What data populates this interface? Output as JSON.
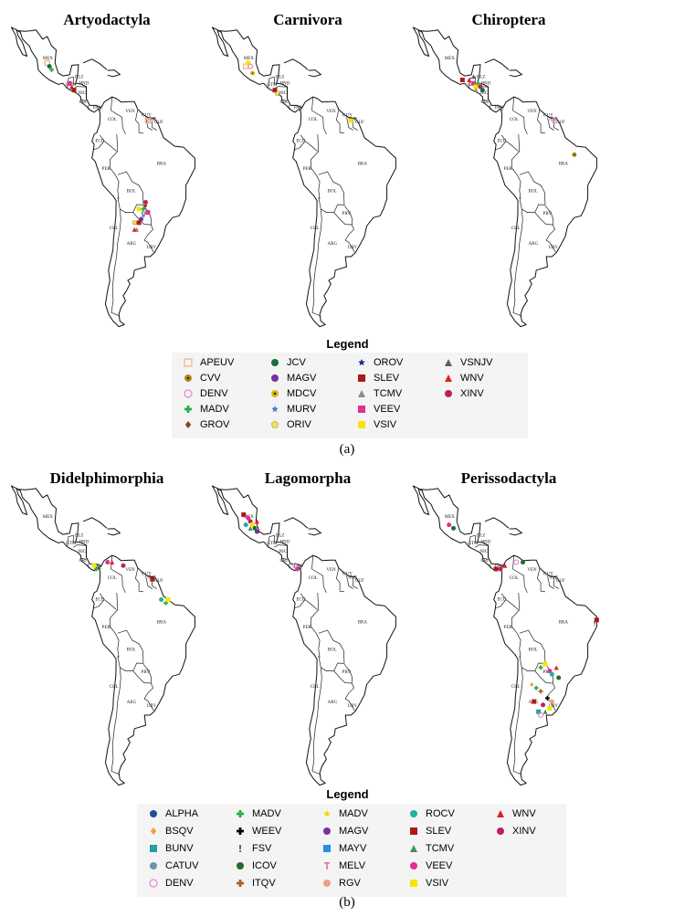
{
  "panel_a": {
    "label": "(a)",
    "maps": [
      {
        "title": "Artyodactyla",
        "markers": [
          [
            "APEUV",
            -101,
            22
          ],
          [
            "JCV",
            -100,
            21
          ],
          [
            "MADV",
            -99,
            20
          ],
          [
            "WNV",
            -90,
            15
          ],
          [
            "SLEV",
            -89,
            14
          ],
          [
            "VEEV",
            -91,
            16
          ],
          [
            "DENV",
            -55,
            5
          ],
          [
            "APEUV",
            -56,
            5
          ],
          [
            "GROV",
            -57,
            -20
          ],
          [
            "MADV",
            -58,
            -21
          ],
          [
            "VEEV",
            -56,
            -22
          ],
          [
            "MAGV",
            -59,
            -24
          ],
          [
            "SLEV",
            -60,
            -25
          ],
          [
            "ORIV",
            -62,
            -25
          ],
          [
            "MURV",
            -58,
            -23
          ],
          [
            "TCMV",
            -61,
            -27
          ],
          [
            "XINV",
            -57,
            -19
          ],
          [
            "VSIV",
            -60,
            -21
          ],
          [
            "WNV",
            -62,
            -27
          ]
        ]
      },
      {
        "title": "Carnivora",
        "markers": [
          [
            "APEUV",
            -102,
            21
          ],
          [
            "VSIV",
            -101,
            22
          ],
          [
            "DENV",
            -100,
            21
          ],
          [
            "MDCV",
            -99,
            19
          ],
          [
            "SLEV",
            -89,
            14
          ],
          [
            "ORIV",
            -88,
            13
          ],
          [
            "VSIV",
            -55,
            5
          ]
        ]
      },
      {
        "title": "Chiroptera",
        "markers": [
          [
            "SLEV",
            -95,
            17
          ],
          [
            "WNV",
            -92,
            17
          ],
          [
            "VEEV",
            -90,
            16
          ],
          [
            "VSIV",
            -89,
            15
          ],
          [
            "MADV",
            -88,
            16
          ],
          [
            "XINV",
            -87,
            15
          ],
          [
            "TCMV",
            -89,
            14
          ],
          [
            "JCV",
            -86,
            14
          ],
          [
            "VSNJV",
            -90,
            18
          ],
          [
            "DENV",
            -54,
            5
          ],
          [
            "CVV",
            -45,
            -5
          ]
        ]
      }
    ],
    "legend_title": "Legend",
    "legend": [
      [
        "APEUV",
        "square-open",
        "#f2b27c"
      ],
      [
        "CVV",
        "circle-dot",
        "#b08a1a"
      ],
      [
        "DENV",
        "circle-open",
        "#e08ad0"
      ],
      [
        "MADV",
        "plus",
        "#22b04a"
      ],
      [
        "GROV",
        "diamond",
        "#8b4513"
      ],
      [
        "JCV",
        "circle",
        "#1f6b40"
      ],
      [
        "MAGV",
        "circle",
        "#7b2fa0"
      ],
      [
        "MDCV",
        "circle-dot",
        "#d8c000"
      ],
      [
        "MURV",
        "star",
        "#4a7ac8"
      ],
      [
        "ORIV",
        "pentagon",
        "#f0e060"
      ],
      [
        "OROV",
        "star",
        "#1a2a8a"
      ],
      [
        "SLEV",
        "square",
        "#b01818"
      ],
      [
        "TCMV",
        "triangle",
        "#8c8c8c"
      ],
      [
        "VEEV",
        "square",
        "#e03090"
      ],
      [
        "VSIV",
        "square",
        "#f5e600"
      ],
      [
        "VSNJV",
        "triangle",
        "#705858"
      ],
      [
        "WNV",
        "triangle",
        "#e02020"
      ],
      [
        "XINV",
        "circle",
        "#c0205a"
      ]
    ]
  },
  "panel_b": {
    "label": "(b)",
    "maps": [
      {
        "title": "Didelphimorphia",
        "markers": [
          [
            "VSIV",
            -80,
            9
          ],
          [
            "MADV",
            -79,
            8
          ],
          [
            "VEEV",
            -74,
            10
          ],
          [
            "WNV",
            -72,
            10
          ],
          [
            "XINV",
            -67,
            9
          ],
          [
            "SLEV",
            -54,
            5
          ],
          [
            "ROCV",
            -50,
            -1
          ],
          [
            "MADV",
            -48,
            -2
          ],
          [
            "VSIV",
            -47,
            -1
          ]
        ]
      },
      {
        "title": "Lagomorpha",
        "markers": [
          [
            "SLEV",
            -103,
            24
          ],
          [
            "VEEV",
            -101,
            23
          ],
          [
            "XINV",
            -100,
            22
          ],
          [
            "VSIV",
            -99,
            21
          ],
          [
            "ICOV",
            -98,
            20
          ],
          [
            "WNV",
            -97,
            22
          ],
          [
            "TCMV",
            -100,
            20
          ],
          [
            "ROCV",
            -102,
            21
          ],
          [
            "MAGV",
            -97,
            19
          ],
          [
            "DENV",
            -80,
            9
          ],
          [
            "VEEV",
            -79,
            8
          ]
        ]
      },
      {
        "title": "Perissodactyla",
        "markers": [
          [
            "VEEV",
            -101,
            21
          ],
          [
            "ICOV",
            -99,
            20
          ],
          [
            "SLEV",
            -80,
            8
          ],
          [
            "XINV",
            -78,
            8
          ],
          [
            "WNV",
            -76,
            9
          ],
          [
            "DENV",
            -71,
            10
          ],
          [
            "ICOV",
            -68,
            10
          ],
          [
            "FSV",
            -36,
            -8
          ],
          [
            "SLEV",
            -35,
            -7
          ],
          [
            "MADV",
            -60,
            -21
          ],
          [
            "VSIV",
            -58,
            -20
          ],
          [
            "VEEV",
            -56,
            -22
          ],
          [
            "ROCV",
            -55,
            -23
          ],
          [
            "WNV",
            -53,
            -21
          ],
          [
            "ICOV",
            -52,
            -24
          ],
          [
            "MADV",
            -62,
            -27
          ],
          [
            "BSQV",
            -64,
            -26
          ],
          [
            "ITQV",
            -60,
            -28
          ],
          [
            "WEEV",
            -57,
            -30
          ],
          [
            "XINV",
            -59,
            -32
          ],
          [
            "VSIV",
            -56,
            -33
          ],
          [
            "BUNV",
            -61,
            -34
          ],
          [
            "DENV",
            -60,
            -35
          ],
          [
            "TCMV",
            -58,
            -34
          ],
          [
            "SLEV",
            -63,
            -31
          ],
          [
            "RGV",
            -55,
            -31
          ]
        ]
      }
    ],
    "legend_title": "Legend",
    "legend": [
      [
        "ALPHA",
        "circle",
        "#1f4e9a"
      ],
      [
        "BSQV",
        "diamond",
        "#f0a030"
      ],
      [
        "BUNV",
        "square",
        "#20a0a0"
      ],
      [
        "CATUV",
        "circle",
        "#7090b0"
      ],
      [
        "DENV",
        "circle-open",
        "#e08ad0"
      ],
      [
        "MADV",
        "plus",
        "#22b04a"
      ],
      [
        "WEEV",
        "plus",
        "#000000"
      ],
      [
        "FSV",
        "exclam",
        "#2a3a8a"
      ],
      [
        "ICOV",
        "circle",
        "#1f6b30"
      ],
      [
        "ITQV",
        "plus",
        "#b06020"
      ],
      [
        "MADV",
        "star",
        "#f5d800"
      ],
      [
        "MAGV",
        "circle",
        "#7b2fa0"
      ],
      [
        "MAYV",
        "square",
        "#2090e0"
      ],
      [
        "MELV",
        "tee",
        "#e07090"
      ],
      [
        "RGV",
        "circle",
        "#f0a080"
      ],
      [
        "ROCV",
        "circle",
        "#20b0a0"
      ],
      [
        "SLEV",
        "square",
        "#b01818"
      ],
      [
        "TCMV",
        "triangle",
        "#4a8a60"
      ],
      [
        "VEEV",
        "circle",
        "#e03090"
      ],
      [
        "VSIV",
        "square",
        "#f5e600"
      ],
      [
        "WNV",
        "triangle",
        "#e02020"
      ],
      [
        "XINV",
        "circle",
        "#c0205a"
      ]
    ]
  },
  "countries": [
    "MEX",
    "BLZ",
    "HND",
    "GTM",
    "NIC",
    "CRI",
    "PAN",
    "COL",
    "VEN",
    "GUY",
    "SUR",
    "GUF",
    "ECU",
    "PER",
    "BRA",
    "BOL",
    "PRY",
    "CHL",
    "ARG",
    "URY"
  ]
}
